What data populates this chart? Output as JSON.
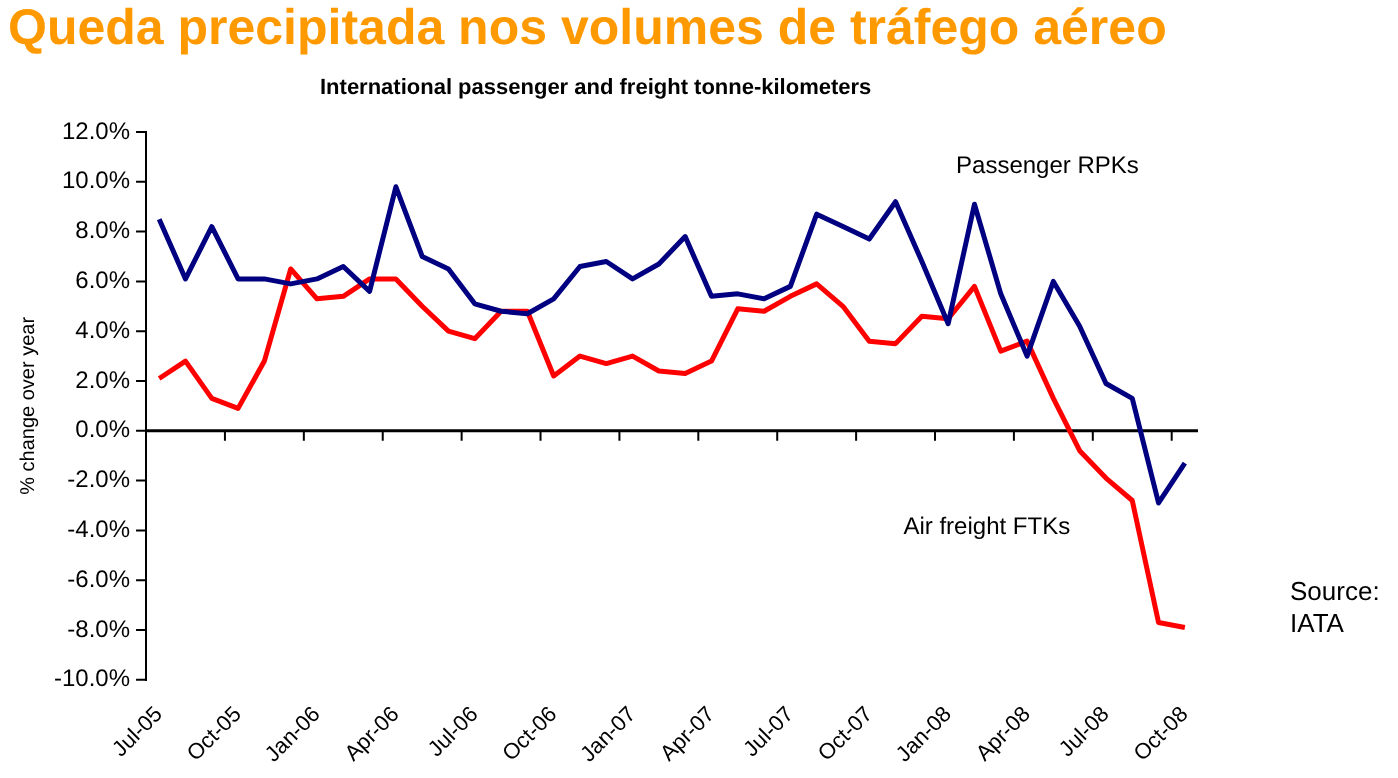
{
  "chart_data": {
    "type": "line",
    "title": "Queda precipitada nos volumes de tráfego aéreo",
    "subtitle": "International passenger and freight tonne-kilometers",
    "ylabel": "% change over year",
    "annotations": [
      "Source:\nIATA"
    ],
    "categories": [
      "Jul-05",
      null,
      null,
      "Oct-05",
      null,
      null,
      "Jan-06",
      null,
      null,
      "Apr-06",
      null,
      null,
      "Jul-06",
      null,
      null,
      "Oct-06",
      null,
      null,
      "Jan-07",
      null,
      null,
      "Apr-07",
      null,
      null,
      "Jul-07",
      null,
      null,
      "Oct-07",
      null,
      null,
      "Jan-08",
      null,
      null,
      "Apr-08",
      null,
      null,
      "Jul-08",
      null,
      null,
      "Oct-08"
    ],
    "series": [
      {
        "name": "Passenger RPKs",
        "color": "#000080",
        "values": [
          8.5,
          6.1,
          8.2,
          6.1,
          6.1,
          5.9,
          6.1,
          6.6,
          5.6,
          9.8,
          7.0,
          6.5,
          5.1,
          4.8,
          4.7,
          5.3,
          6.6,
          6.8,
          6.1,
          6.7,
          7.8,
          5.4,
          5.5,
          5.3,
          5.8,
          8.7,
          8.2,
          7.7,
          9.2,
          6.8,
          4.3,
          9.1,
          5.5,
          3.0,
          6.0,
          4.2,
          1.9,
          1.3,
          -2.9,
          -1.3
        ]
      },
      {
        "name": "Air freight FTKs",
        "color": "#ff0000",
        "values": [
          2.1,
          2.8,
          1.3,
          0.9,
          2.8,
          6.5,
          5.3,
          5.4,
          6.1,
          6.1,
          5.0,
          4.0,
          3.7,
          4.8,
          4.8,
          2.2,
          3.0,
          2.7,
          3.0,
          2.4,
          2.3,
          2.8,
          4.9,
          4.8,
          5.4,
          5.9,
          5.0,
          3.6,
          3.5,
          4.6,
          4.5,
          5.8,
          3.2,
          3.6,
          1.3,
          -0.8,
          -1.9,
          -2.8,
          -7.7,
          -7.9
        ]
      }
    ],
    "ylim": [
      -10,
      12
    ],
    "yticks": [
      {
        "value": -10,
        "label": "-10.0%"
      },
      {
        "value": -8,
        "label": "-8.0%"
      },
      {
        "value": -6,
        "label": "-6.0%"
      },
      {
        "value": -4,
        "label": "-4.0%"
      },
      {
        "value": -2,
        "label": "-2.0%"
      },
      {
        "value": 0,
        "label": "0.0%"
      },
      {
        "value": 2,
        "label": "2.0%"
      },
      {
        "value": 4,
        "label": "4.0%"
      },
      {
        "value": 6,
        "label": "6.0%"
      },
      {
        "value": 8,
        "label": "8.0%"
      },
      {
        "value": 10,
        "label": "10.0%"
      },
      {
        "value": 12,
        "label": "12.0%"
      }
    ],
    "ref_lines": [
      {
        "axis": "y",
        "value": 0,
        "color": "#000000"
      }
    ],
    "grid": false,
    "legend": false,
    "marker": "none",
    "line_style": "solid"
  }
}
